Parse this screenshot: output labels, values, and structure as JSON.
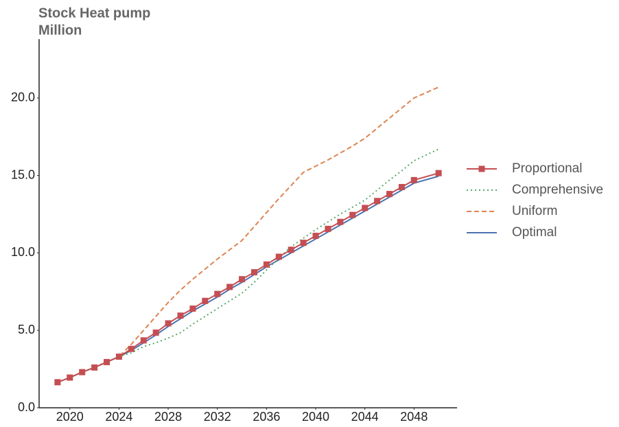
{
  "chart_data": {
    "type": "line",
    "title": "Stock Heat pump",
    "ylabel": "Million",
    "x": [
      2019,
      2020,
      2021,
      2022,
      2023,
      2024,
      2025,
      2026,
      2027,
      2028,
      2029,
      2030,
      2031,
      2032,
      2033,
      2034,
      2035,
      2036,
      2037,
      2038,
      2039,
      2040,
      2041,
      2042,
      2043,
      2044,
      2045,
      2046,
      2047,
      2048,
      2050
    ],
    "series": [
      {
        "name": "Proportional",
        "color": "#c44e52",
        "style": "solid",
        "marker": "square",
        "values": [
          1.65,
          1.95,
          2.3,
          2.6,
          2.95,
          3.3,
          3.8,
          4.35,
          4.85,
          5.45,
          5.95,
          6.4,
          6.9,
          7.35,
          7.8,
          8.3,
          8.75,
          9.25,
          9.75,
          10.2,
          10.65,
          11.1,
          11.55,
          12.0,
          12.45,
          12.9,
          13.35,
          13.8,
          14.25,
          14.7,
          15.15
        ]
      },
      {
        "name": "Comprehensive",
        "color": "#55a868",
        "style": "dotted",
        "values": [
          1.65,
          1.95,
          2.3,
          2.6,
          2.95,
          3.3,
          3.55,
          3.95,
          4.2,
          4.5,
          4.85,
          5.4,
          5.9,
          6.4,
          6.9,
          7.4,
          8.1,
          8.9,
          9.65,
          10.4,
          10.95,
          11.5,
          12.0,
          12.5,
          12.95,
          13.4,
          14.05,
          14.7,
          15.3,
          15.95,
          16.7
        ]
      },
      {
        "name": "Uniform",
        "color": "#dd8452",
        "style": "dashed",
        "values": [
          1.65,
          1.95,
          2.3,
          2.6,
          2.95,
          3.3,
          4.1,
          5.0,
          5.9,
          6.8,
          7.6,
          8.3,
          8.95,
          9.6,
          10.2,
          10.8,
          11.7,
          12.6,
          13.5,
          14.35,
          15.2,
          15.6,
          16.0,
          16.45,
          16.9,
          17.4,
          18.05,
          18.7,
          19.35,
          20.0,
          20.7
        ]
      },
      {
        "name": "Optimal",
        "color": "#4c72b0",
        "style": "solid",
        "values": [
          1.65,
          1.95,
          2.3,
          2.6,
          2.95,
          3.3,
          3.7,
          4.2,
          4.7,
          5.25,
          5.75,
          6.25,
          6.7,
          7.15,
          7.65,
          8.1,
          8.6,
          9.1,
          9.55,
          10.0,
          10.45,
          10.9,
          11.35,
          11.8,
          12.25,
          12.7,
          13.15,
          13.6,
          14.05,
          14.5,
          14.95
        ]
      }
    ],
    "xlim": [
      2017.5,
      2051.5
    ],
    "xticks": [
      2020,
      2024,
      2028,
      2032,
      2036,
      2040,
      2044,
      2048
    ],
    "ylim": [
      0,
      23.8
    ],
    "yticks": [
      {
        "value": 0,
        "label": "0.0"
      },
      {
        "value": 5,
        "label": "5.0"
      },
      {
        "value": 10,
        "label": "10.0"
      },
      {
        "value": 15,
        "label": "15.0"
      },
      {
        "value": 20,
        "label": "20.0"
      }
    ],
    "legend": "right"
  }
}
